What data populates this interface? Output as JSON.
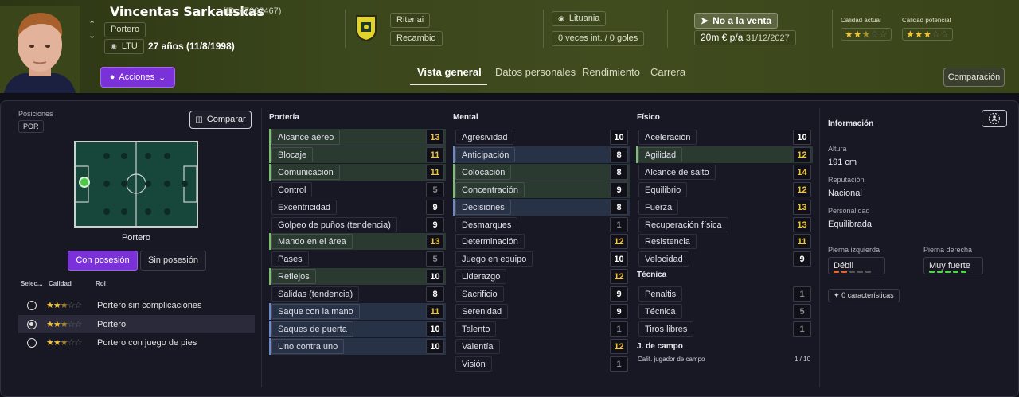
{
  "player": {
    "name": "Vincentas Sarkauskas",
    "id": "(ID: 47062467)",
    "position": "Portero",
    "nation_code": "LTU",
    "age": "27 años (11/8/1998)",
    "actions_label": "Acciones"
  },
  "club": {
    "name": "Riteriai",
    "role": "Recambio"
  },
  "nation": {
    "name": "Lituania",
    "caps": "0 veces int. / 0 goles"
  },
  "contract": {
    "status": "No a la venta",
    "wage": "20m € p/a",
    "expires": "31/12/2027"
  },
  "ability": {
    "current_label": "Calidad actual",
    "current_stars": 2.5,
    "potential_label": "Calidad potencial",
    "potential_stars": 3
  },
  "tabs": [
    "Vista general",
    "Datos personales",
    "Rendimiento",
    "Carrera"
  ],
  "comparison_label": "Comparación",
  "left": {
    "positions_label": "Posiciones",
    "position_badge": "POR",
    "compare_label": "Comparar",
    "pitch_role": "Portero",
    "with_ball": "Con posesión",
    "without_ball": "Sin posesión",
    "headers": {
      "select": "Selec...",
      "quality": "Calidad",
      "role": "Rol"
    },
    "roles": [
      {
        "name": "Portero sin complicaciones",
        "stars": 2.5,
        "selected": false
      },
      {
        "name": "Portero",
        "stars": 2.5,
        "selected": true
      },
      {
        "name": "Portero con juego de pies",
        "stars": 2.5,
        "selected": false
      }
    ]
  },
  "goalkeeping": {
    "title": "Portería",
    "attrs": [
      {
        "name": "Alcance aéreo",
        "value": "13",
        "key": true
      },
      {
        "name": "Blocaje",
        "value": "11",
        "key": true
      },
      {
        "name": "Comunicación",
        "value": "11",
        "key": true
      },
      {
        "name": "Control",
        "value": "5",
        "key": false
      },
      {
        "name": "Excentricidad",
        "value": "9",
        "key": false
      },
      {
        "name": "Golpeo de puños (tendencia)",
        "value": "9",
        "key": false
      },
      {
        "name": "Mando en el área",
        "value": "13",
        "key": true
      },
      {
        "name": "Pases",
        "value": "5",
        "key": false
      },
      {
        "name": "Reflejos",
        "value": "10",
        "key": true
      },
      {
        "name": "Salidas (tendencia)",
        "value": "8",
        "key": false
      },
      {
        "name": "Saque con la mano",
        "value": "11",
        "key": "blue"
      },
      {
        "name": "Saques de puerta",
        "value": "10",
        "key": "blue"
      },
      {
        "name": "Uno contra uno",
        "value": "10",
        "key": "blue"
      }
    ]
  },
  "mental": {
    "title": "Mental",
    "attrs": [
      {
        "name": "Agresividad",
        "value": "10",
        "key": false
      },
      {
        "name": "Anticipación",
        "value": "8",
        "key": "blue"
      },
      {
        "name": "Colocación",
        "value": "8",
        "key": true
      },
      {
        "name": "Concentración",
        "value": "9",
        "key": true
      },
      {
        "name": "Decisiones",
        "value": "8",
        "key": "blue"
      },
      {
        "name": "Desmarques",
        "value": "1",
        "key": false
      },
      {
        "name": "Determinación",
        "value": "12",
        "key": false
      },
      {
        "name": "Juego en equipo",
        "value": "10",
        "key": false
      },
      {
        "name": "Liderazgo",
        "value": "12",
        "key": false
      },
      {
        "name": "Sacrificio",
        "value": "9",
        "key": false
      },
      {
        "name": "Serenidad",
        "value": "9",
        "key": false
      },
      {
        "name": "Talento",
        "value": "1",
        "key": false
      },
      {
        "name": "Valentía",
        "value": "12",
        "key": false
      },
      {
        "name": "Visión",
        "value": "1",
        "key": false
      }
    ]
  },
  "physical": {
    "title": "Físico",
    "attrs": [
      {
        "name": "Aceleración",
        "value": "10",
        "key": false
      },
      {
        "name": "Agilidad",
        "value": "12",
        "key": true
      },
      {
        "name": "Alcance de salto",
        "value": "14",
        "key": false
      },
      {
        "name": "Equilibrio",
        "value": "12",
        "key": false
      },
      {
        "name": "Fuerza",
        "value": "13",
        "key": false
      },
      {
        "name": "Recuperación física",
        "value": "13",
        "key": false
      },
      {
        "name": "Resistencia",
        "value": "11",
        "key": false
      },
      {
        "name": "Velocidad",
        "value": "9",
        "key": false
      }
    ]
  },
  "technical": {
    "title": "Técnica",
    "attrs": [
      {
        "name": "Penaltis",
        "value": "1",
        "key": false
      },
      {
        "name": "Técnica",
        "value": "5",
        "key": false
      },
      {
        "name": "Tiros libres",
        "value": "1",
        "key": false
      }
    ]
  },
  "outfield": {
    "title": "J. de campo",
    "label": "Calif. jugador de campo",
    "value": "1 / 10"
  },
  "info": {
    "title": "Información",
    "height_label": "Altura",
    "height": "191 cm",
    "reputation_label": "Reputación",
    "reputation": "Nacional",
    "personality_label": "Personalidad",
    "personality": "Equilibrada",
    "left_foot_label": "Pierna izquierda",
    "left_foot": "Débil",
    "right_foot_label": "Pierna derecha",
    "right_foot": "Muy fuerte",
    "traits": "0 características"
  },
  "colors": {
    "accent": "#7a31d8",
    "yellow": "#f3c43b",
    "green_bar": "#7ac26a",
    "blue_bar": "#6e89c8"
  }
}
